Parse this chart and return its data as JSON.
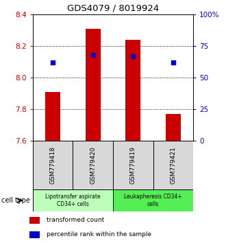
{
  "title": "GDS4079 / 8019924",
  "samples": [
    "GSM779418",
    "GSM779420",
    "GSM779419",
    "GSM779421"
  ],
  "transformed_counts": [
    7.91,
    8.31,
    8.24,
    7.77
  ],
  "percentile_ranks": [
    62,
    68,
    67,
    62
  ],
  "ylim_left": [
    7.6,
    8.4
  ],
  "ylim_right": [
    0,
    100
  ],
  "yticks_left": [
    7.6,
    7.8,
    8.0,
    8.2,
    8.4
  ],
  "yticks_right": [
    0,
    25,
    50,
    75,
    100
  ],
  "ytick_labels_right": [
    "0",
    "25",
    "50",
    "75",
    "100%"
  ],
  "bar_color": "#cc0000",
  "dot_color": "#0000cc",
  "bar_bottom": 7.6,
  "cell_types": [
    {
      "label": "Lipotransfer aspirate\nCD34+ cells",
      "samples": [
        0,
        1
      ],
      "color": "#bbffbb"
    },
    {
      "label": "Leukapheresis CD34+\ncells",
      "samples": [
        2,
        3
      ],
      "color": "#55ee55"
    }
  ],
  "cell_type_label": "cell type",
  "legend_bar_label": "transformed count",
  "legend_dot_label": "percentile rank within the sample",
  "left_tick_color": "#cc0000",
  "right_tick_color": "#0000cc",
  "sample_box_color": "#d8d8d8"
}
